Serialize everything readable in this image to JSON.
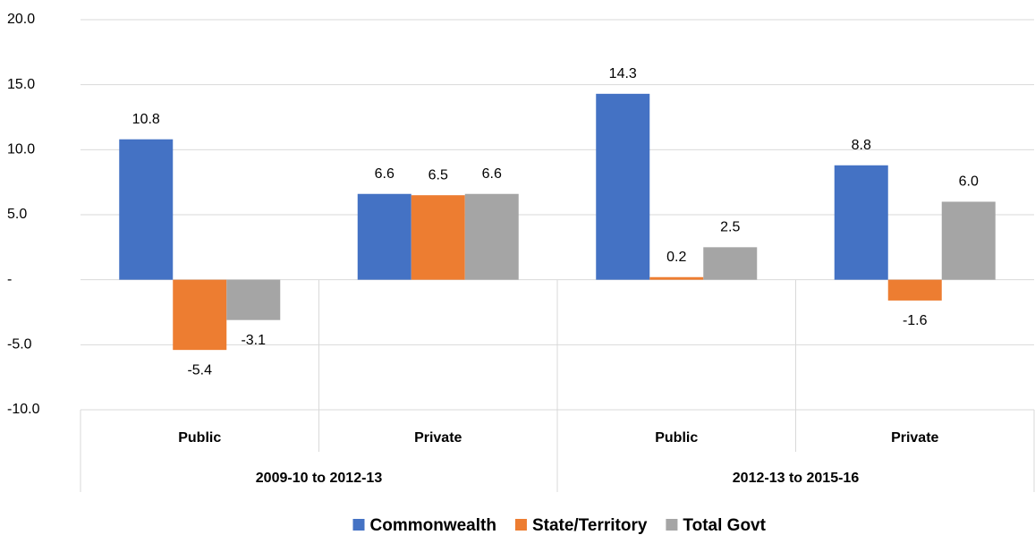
{
  "chart_data": {
    "type": "bar",
    "categories": [
      "Public",
      "Private",
      "Public",
      "Private"
    ],
    "groups": [
      "2009-10 to 2012-13",
      "2012-13 to 2015-16"
    ],
    "series": [
      {
        "name": "Commonwealth",
        "color": "#4472c4",
        "values": [
          10.8,
          6.6,
          14.3,
          8.8
        ],
        "value_labels": [
          "10.8",
          "6.6",
          "14.3",
          "8.8"
        ]
      },
      {
        "name": "State/Territory",
        "color": "#ed7d31",
        "values": [
          -5.4,
          6.5,
          0.2,
          -1.6
        ],
        "value_labels": [
          "-5.4",
          "6.5",
          "0.2",
          "-1.6"
        ]
      },
      {
        "name": "Total Govt",
        "color": "#a5a5a5",
        "values": [
          -3.1,
          6.6,
          2.5,
          6.0
        ],
        "value_labels": [
          "-3.1",
          "6.6",
          "2.5",
          "6.0"
        ]
      }
    ],
    "ylim": [
      -10,
      20
    ],
    "yticks": [
      {
        "value": -10,
        "label": "-10.0"
      },
      {
        "value": -5,
        "label": "-5.0"
      },
      {
        "value": 0,
        "label": "-"
      },
      {
        "value": 5,
        "label": "5.0"
      },
      {
        "value": 10,
        "label": "10.0"
      },
      {
        "value": 15,
        "label": "15.0"
      },
      {
        "value": 20,
        "label": "20.0"
      }
    ],
    "grid": true,
    "legend": "bottom"
  }
}
